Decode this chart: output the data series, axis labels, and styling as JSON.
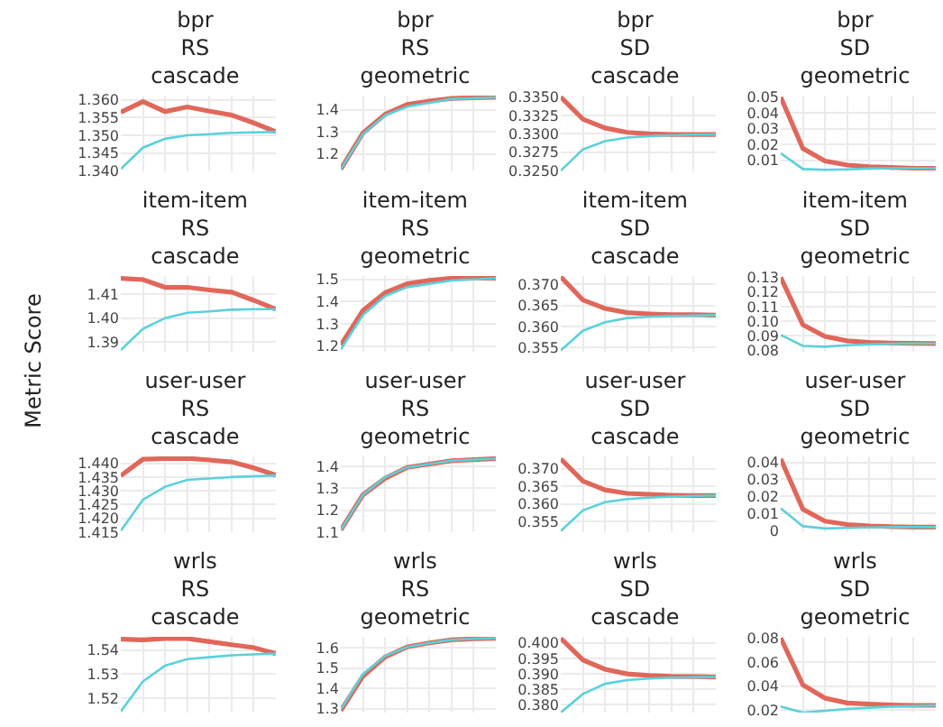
{
  "chart_data": [
    {
      "type": "line",
      "title": "bpr\nRS\ncascade",
      "ylabel": null,
      "categories": [
        null,
        null,
        null,
        null,
        null,
        null,
        null,
        null
      ],
      "grid": true,
      "tick_labels": "y",
      "ylim": [
        1.3398,
        1.3612
      ],
      "yticks": [
        {
          "value": 1.34,
          "label": "1.340"
        },
        1.345,
        {
          "value": 1.35,
          "label": "1.350"
        },
        1.355,
        {
          "value": 1.36,
          "label": "1.360"
        }
      ],
      "series": [
        {
          "color": "#e0675a",
          "values": [
            1.3565,
            1.3595,
            1.3567,
            1.358,
            1.3568,
            1.3557,
            1.3535,
            1.351
          ]
        },
        {
          "color": "#5bd1da",
          "values": [
            1.3405,
            1.3465,
            1.349,
            1.35,
            1.3503,
            1.3507,
            1.3508,
            1.3509
          ]
        }
      ]
    },
    {
      "type": "line",
      "title": "bpr\nRS\ngeometric",
      "categories": [
        null,
        null,
        null,
        null,
        null,
        null,
        null,
        null
      ],
      "grid": true,
      "tick_labels": "y",
      "ylim": [
        1.12,
        1.465
      ],
      "yticks": [
        1.2,
        1.3,
        1.4
      ],
      "series": [
        {
          "color": "#e0675a",
          "values": [
            1.13,
            1.295,
            1.38,
            1.425,
            1.44,
            1.452,
            1.455,
            1.457
          ]
        },
        {
          "color": "#5bd1da",
          "values": [
            1.13,
            1.29,
            1.375,
            1.415,
            1.432,
            1.45,
            1.453,
            1.457
          ]
        }
      ]
    },
    {
      "type": "line",
      "title": "bpr\nSD\ncascade",
      "categories": [
        null,
        null,
        null,
        null,
        null,
        null,
        null,
        null
      ],
      "grid": true,
      "tick_labels": "y",
      "ylim": [
        0.3249,
        0.3352
      ],
      "yticks": [
        {
          "value": 0.325,
          "label": "0.3250"
        },
        0.3275,
        {
          "value": 0.33,
          "label": "0.3300"
        },
        0.3325,
        {
          "value": 0.335,
          "label": "0.3350"
        }
      ],
      "series": [
        {
          "color": "#e0675a",
          "values": [
            0.335,
            0.332,
            0.3308,
            0.3302,
            0.33,
            0.3299,
            0.3299,
            0.3299
          ]
        },
        {
          "color": "#5bd1da",
          "values": [
            0.325,
            0.3279,
            0.329,
            0.3295,
            0.3297,
            0.3298,
            0.3299,
            0.3299
          ]
        }
      ]
    },
    {
      "type": "line",
      "title": "bpr\nSD\ngeometric",
      "categories": [
        null,
        null,
        null,
        null,
        null,
        null,
        null,
        null
      ],
      "grid": true,
      "tick_labels": "y",
      "ylim": [
        0.003,
        0.051
      ],
      "yticks": [
        0.01,
        0.02,
        0.03,
        0.04,
        0.05
      ],
      "series": [
        {
          "color": "#e0675a",
          "values": [
            0.05,
            0.0175,
            0.0095,
            0.007,
            0.006,
            0.0055,
            0.005,
            0.005
          ]
        },
        {
          "color": "#5bd1da",
          "values": [
            0.0145,
            0.0045,
            0.004,
            0.0043,
            0.0048,
            0.005,
            0.005,
            0.005
          ]
        }
      ]
    },
    {
      "type": "line",
      "title": "item-item\nRS\ncascade",
      "categories": [
        null,
        null,
        null,
        null,
        null,
        null,
        null,
        null
      ],
      "grid": true,
      "tick_labels": "y",
      "ylim": [
        1.386,
        1.4175
      ],
      "yticks": [
        1.39,
        {
          "value": 1.4,
          "label": "1.40"
        },
        1.41
      ],
      "series": [
        {
          "color": "#e0675a",
          "values": [
            1.4165,
            1.416,
            1.4128,
            1.4128,
            1.4117,
            1.4108,
            1.4074,
            1.4037
          ]
        },
        {
          "color": "#5bd1da",
          "values": [
            1.3867,
            1.3955,
            1.4,
            1.4022,
            1.4028,
            1.4035,
            1.4037,
            1.4037
          ]
        }
      ]
    },
    {
      "type": "line",
      "title": "item-item\nRS\ngeometric",
      "categories": [
        null,
        null,
        null,
        null,
        null,
        null,
        null,
        null
      ],
      "grid": true,
      "tick_labels": "y",
      "ylim": [
        1.175,
        1.515
      ],
      "yticks": [
        1.2,
        1.3,
        1.4,
        1.5
      ],
      "series": [
        {
          "color": "#e0675a",
          "values": [
            1.205,
            1.36,
            1.44,
            1.48,
            1.495,
            1.505,
            1.505,
            1.505
          ]
        },
        {
          "color": "#5bd1da",
          "values": [
            1.185,
            1.34,
            1.425,
            1.465,
            1.48,
            1.495,
            1.5,
            1.505
          ]
        }
      ]
    },
    {
      "type": "line",
      "title": "item-item\nSD\ncascade",
      "categories": [
        null,
        null,
        null,
        null,
        null,
        null,
        null,
        null
      ],
      "grid": true,
      "tick_labels": "y",
      "ylim": [
        0.354,
        0.372
      ],
      "yticks": [
        0.355,
        {
          "value": 0.36,
          "label": "0.360"
        },
        0.365,
        {
          "value": 0.37,
          "label": "0.370"
        }
      ],
      "series": [
        {
          "color": "#e0675a",
          "values": [
            0.3718,
            0.3663,
            0.3643,
            0.3633,
            0.363,
            0.3628,
            0.3628,
            0.3627
          ]
        },
        {
          "color": "#5bd1da",
          "values": [
            0.3543,
            0.359,
            0.361,
            0.362,
            0.3623,
            0.3625,
            0.3626,
            0.3627
          ]
        }
      ]
    },
    {
      "type": "line",
      "title": "item-item\nSD\ngeometric",
      "categories": [
        null,
        null,
        null,
        null,
        null,
        null,
        null,
        null
      ],
      "grid": true,
      "tick_labels": "y",
      "ylim": [
        0.079,
        0.131
      ],
      "yticks": [
        {
          "value": 0.08,
          "label": "0.08"
        },
        0.09,
        {
          "value": 0.1,
          "label": "0.10"
        },
        0.11,
        0.12,
        0.13
      ],
      "series": [
        {
          "color": "#e0675a",
          "values": [
            0.13,
            0.0975,
            0.0895,
            0.0865,
            0.0855,
            0.085,
            0.0848,
            0.0847
          ]
        },
        {
          "color": "#5bd1da",
          "values": [
            0.0905,
            0.083,
            0.0825,
            0.0835,
            0.084,
            0.0845,
            0.0847,
            0.0847
          ]
        }
      ]
    },
    {
      "type": "line",
      "title": "user-user\nRS\ncascade",
      "ylabel": "Metric Score",
      "categories": [
        null,
        null,
        null,
        null,
        null,
        null,
        null,
        null
      ],
      "grid": true,
      "tick_labels": "y",
      "ylim": [
        1.415,
        1.4425
      ],
      "yticks": [
        1.415,
        {
          "value": 1.42,
          "label": "1.420"
        },
        1.425,
        {
          "value": 1.43,
          "label": "1.430"
        },
        1.435,
        {
          "value": 1.44,
          "label": "1.440"
        }
      ],
      "series": [
        {
          "color": "#e0675a",
          "values": [
            1.4355,
            1.4415,
            1.4417,
            1.4418,
            1.4412,
            1.4405,
            1.4383,
            1.4357
          ]
        },
        {
          "color": "#5bd1da",
          "values": [
            1.4155,
            1.4268,
            1.4315,
            1.434,
            1.4345,
            1.435,
            1.4353,
            1.4356
          ]
        }
      ]
    },
    {
      "type": "line",
      "title": "user-user\nRS\ngeometric",
      "categories": [
        null,
        null,
        null,
        null,
        null,
        null,
        null,
        null
      ],
      "grid": true,
      "tick_labels": "y",
      "ylim": [
        1.1,
        1.445
      ],
      "yticks": [
        1.1,
        1.2,
        1.3,
        1.4
      ],
      "series": [
        {
          "color": "#e0675a",
          "values": [
            1.11,
            1.27,
            1.345,
            1.395,
            1.41,
            1.425,
            1.43,
            1.435
          ]
        },
        {
          "color": "#5bd1da",
          "values": [
            1.11,
            1.27,
            1.35,
            1.395,
            1.41,
            1.425,
            1.43,
            1.435
          ]
        }
      ]
    },
    {
      "type": "line",
      "title": "user-user\nSD\ncascade",
      "categories": [
        null,
        null,
        null,
        null,
        null,
        null,
        null,
        null
      ],
      "grid": true,
      "tick_labels": "y",
      "ylim": [
        0.352,
        0.3735
      ],
      "yticks": [
        0.355,
        {
          "value": 0.36,
          "label": "0.360"
        },
        0.365,
        {
          "value": 0.37,
          "label": "0.370"
        }
      ],
      "series": [
        {
          "color": "#e0675a",
          "values": [
            0.3728,
            0.3665,
            0.364,
            0.363,
            0.3627,
            0.3625,
            0.3624,
            0.3624
          ]
        },
        {
          "color": "#5bd1da",
          "values": [
            0.3523,
            0.3582,
            0.3605,
            0.3614,
            0.3618,
            0.3621,
            0.3623,
            0.3624
          ]
        }
      ]
    },
    {
      "type": "line",
      "title": "user-user\nSD\ngeometric",
      "categories": [
        null,
        null,
        null,
        null,
        null,
        null,
        null,
        null
      ],
      "grid": true,
      "tick_labels": "y",
      "ylim": [
        -0.001,
        0.0435
      ],
      "yticks": [
        0,
        0.01,
        0.02,
        0.03,
        0.04
      ],
      "series": [
        {
          "color": "#e0675a",
          "values": [
            0.042,
            0.0125,
            0.0055,
            0.0035,
            0.0027,
            0.0022,
            0.002,
            0.002
          ]
        },
        {
          "color": "#5bd1da",
          "values": [
            0.013,
            0.0025,
            0.0012,
            0.0015,
            0.0018,
            0.002,
            0.002,
            0.002
          ]
        }
      ]
    },
    {
      "type": "line",
      "title": "wrls\nRS\ncascade",
      "categories": [
        null,
        null,
        null,
        null,
        null,
        null,
        null,
        null
      ],
      "grid": true,
      "tick_labels": "y",
      "ylim": [
        1.514,
        1.5455
      ],
      "yticks": [
        1.52,
        1.53,
        1.54
      ],
      "series": [
        {
          "color": "#e0675a",
          "values": [
            1.5445,
            1.5442,
            1.5448,
            1.5448,
            1.5435,
            1.5422,
            1.541,
            1.5385
          ]
        },
        {
          "color": "#5bd1da",
          "values": [
            1.5145,
            1.527,
            1.5335,
            1.5362,
            1.537,
            1.5378,
            1.5382,
            1.5385
          ]
        }
      ]
    },
    {
      "type": "line",
      "title": "wrls\nRS\ngeometric",
      "categories": [
        null,
        null,
        null,
        null,
        null,
        null,
        null,
        null
      ],
      "grid": true,
      "tick_labels": "y",
      "ylim": [
        1.28,
        1.655
      ],
      "yticks": [
        1.3,
        1.4,
        1.5,
        1.6
      ],
      "series": [
        {
          "color": "#e0675a",
          "values": [
            1.29,
            1.46,
            1.555,
            1.605,
            1.625,
            1.64,
            1.645,
            1.648
          ]
        },
        {
          "color": "#5bd1da",
          "values": [
            1.295,
            1.47,
            1.56,
            1.605,
            1.625,
            1.64,
            1.645,
            1.648
          ]
        }
      ]
    },
    {
      "type": "line",
      "title": "wrls\nSD\ncascade",
      "categories": [
        null,
        null,
        null,
        null,
        null,
        null,
        null,
        null
      ],
      "grid": true,
      "tick_labels": "y",
      "ylim": [
        0.3775,
        0.402
      ],
      "yticks": [
        {
          "value": 0.38,
          "label": "0.380"
        },
        0.385,
        {
          "value": 0.39,
          "label": "0.390"
        },
        0.395,
        {
          "value": 0.4,
          "label": "0.400"
        }
      ],
      "series": [
        {
          "color": "#e0675a",
          "values": [
            0.4015,
            0.3945,
            0.3915,
            0.39,
            0.3895,
            0.3892,
            0.3891,
            0.389
          ]
        },
        {
          "color": "#5bd1da",
          "values": [
            0.3775,
            0.3835,
            0.3868,
            0.388,
            0.3885,
            0.3888,
            0.3889,
            0.389
          ]
        }
      ]
    },
    {
      "type": "line",
      "title": "wrls\nSD\ngeometric",
      "categories": [
        null,
        null,
        null,
        null,
        null,
        null,
        null,
        null
      ],
      "grid": true,
      "tick_labels": "y",
      "ylim": [
        0.018,
        0.081
      ],
      "yticks": [
        0.02,
        0.04,
        0.06,
        0.08
      ],
      "series": [
        {
          "color": "#e0675a",
          "values": [
            0.08,
            0.041,
            0.03,
            0.026,
            0.025,
            0.0243,
            0.024,
            0.024
          ]
        },
        {
          "color": "#5bd1da",
          "values": [
            0.023,
            0.018,
            0.0195,
            0.021,
            0.022,
            0.023,
            0.0235,
            0.024
          ]
        }
      ]
    }
  ]
}
